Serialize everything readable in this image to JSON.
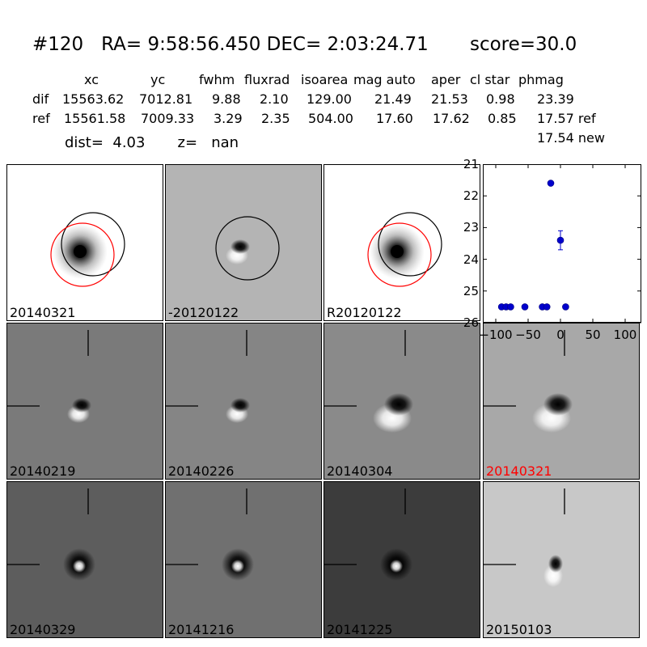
{
  "header": {
    "title": "#120   RA= 9:58:56.450 DEC= 2:03:24.71       score=30.0",
    "columns": [
      "xc",
      "yc",
      "fwhm",
      "fluxrad",
      "isoarea",
      "mag auto",
      "aper",
      "cl star",
      "phmag"
    ],
    "rows": [
      {
        "label": "dif",
        "values": [
          "15563.62",
          "7012.81",
          "9.88",
          "2.10",
          "129.00",
          "21.49",
          "21.53",
          "0.98",
          "23.39"
        ]
      },
      {
        "label": "ref",
        "values": [
          "15561.58",
          "7009.33",
          "3.29",
          "2.35",
          "504.00",
          "17.60",
          "17.62",
          "0.85",
          "17.57 ref"
        ]
      }
    ],
    "extra_phmag": "17.54 new",
    "dist_line": "dist=  4.03       z=   nan"
  },
  "tiles": [
    {
      "label": "20140321",
      "label_color": "#000000",
      "bg": "#ffffff",
      "kind": "star",
      "circles": "both"
    },
    {
      "label": "-20120122",
      "label_color": "#000000",
      "bg": "#b4b4b4",
      "kind": "dipole",
      "circles": "black"
    },
    {
      "label": "R20120122",
      "label_color": "#000000",
      "bg": "#ffffff",
      "kind": "star",
      "circles": "both"
    },
    {
      "label": "20140219",
      "label_color": "#000000",
      "bg": "#7a7a7a",
      "kind": "dipole",
      "crosshair": true
    },
    {
      "label": "20140226",
      "label_color": "#000000",
      "bg": "#858585",
      "kind": "dipole",
      "crosshair": true
    },
    {
      "label": "20140304",
      "label_color": "#000000",
      "bg": "#8a8a8a",
      "kind": "dipole-wide",
      "crosshair": true
    },
    {
      "label": "20140321",
      "label_color": "#ff0000",
      "bg": "#a8a8a8",
      "kind": "dipole-wide",
      "crosshair": true
    },
    {
      "label": "20140329",
      "label_color": "#000000",
      "bg": "#5d5d5d",
      "kind": "ring",
      "crosshair": true
    },
    {
      "label": "20141216",
      "label_color": "#000000",
      "bg": "#707070",
      "kind": "ring",
      "crosshair": true
    },
    {
      "label": "20141225",
      "label_color": "#000000",
      "bg": "#3c3c3c",
      "kind": "ring",
      "crosshair": true
    },
    {
      "label": "20150103",
      "label_color": "#000000",
      "bg": "#c8c8c8",
      "kind": "dipole-small",
      "crosshair": true
    }
  ],
  "chart_data": {
    "type": "scatter",
    "xlim": [
      -120,
      125
    ],
    "ylim": [
      26,
      21
    ],
    "y_inverted": true,
    "xticks": [
      -100,
      -50,
      0,
      50,
      100
    ],
    "xtick_labels": [
      "−100",
      "−50",
      "0",
      "50",
      "100"
    ],
    "yticks": [
      21,
      22,
      23,
      24,
      25,
      26
    ],
    "ytick_labels": [
      "21",
      "22",
      "23",
      "24",
      "25",
      "26"
    ],
    "marker_color": "#0000cc",
    "points": [
      {
        "x": -91,
        "y": 25.5
      },
      {
        "x": -84,
        "y": 25.5
      },
      {
        "x": -77,
        "y": 25.5
      },
      {
        "x": -55,
        "y": 25.5
      },
      {
        "x": -28,
        "y": 25.5
      },
      {
        "x": -21,
        "y": 25.5
      },
      {
        "x": -15,
        "y": 21.6
      },
      {
        "x": 0,
        "y": 23.4,
        "err": 0.3
      },
      {
        "x": 8,
        "y": 25.5
      }
    ]
  }
}
